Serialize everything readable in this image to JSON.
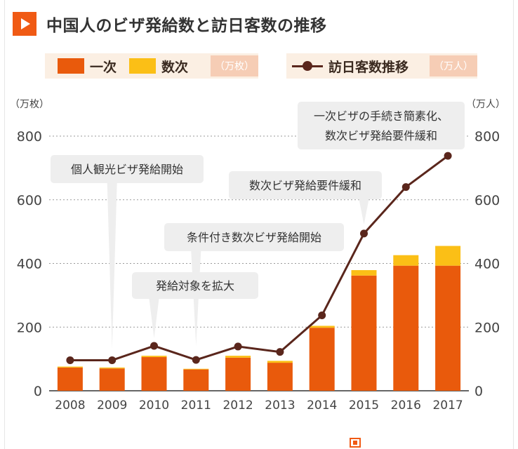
{
  "title": "中国人のビザ発給数と訪日客数の推移",
  "legend": {
    "first": "一次",
    "multi": "数次",
    "bar_unit": "（万枚）",
    "line": "訪日客数推移",
    "line_unit": "（万人）"
  },
  "colors": {
    "accent": "#f05a14",
    "single": "#e95a0c",
    "multi": "#fbbf16",
    "line": "#5a261c",
    "callout": "#eeeeee",
    "legend_bg": "#fbefe3"
  },
  "chart_data": {
    "type": "bar",
    "title": "中国人のビザ発給数と訪日客数の推移",
    "xlabel": "",
    "ylabel": "（万枚）",
    "y2label": "（万人）",
    "ylim": [
      0,
      800
    ],
    "y2lim": [
      0,
      800
    ],
    "yticks": [
      "0",
      "200",
      "400",
      "600",
      "800"
    ],
    "y2ticks": [
      "0",
      "200",
      "400",
      "600",
      "800"
    ],
    "grid": true,
    "categories": [
      "2008",
      "2009",
      "2010",
      "2011",
      "2012",
      "2013",
      "2014",
      "2015",
      "2016",
      "2017"
    ],
    "series": [
      {
        "name": "一次",
        "kind": "bar",
        "values": [
          73,
          70,
          106,
          67,
          104,
          88,
          198,
          362,
          393,
          393
        ]
      },
      {
        "name": "数次",
        "kind": "bar",
        "values": [
          3,
          3,
          4,
          2,
          6,
          6,
          6,
          17,
          33,
          62
        ]
      },
      {
        "name": "訪日客数推移",
        "kind": "line",
        "axis": "right",
        "values": [
          96,
          96,
          141,
          97,
          139,
          122,
          237,
          494,
          640,
          738
        ]
      }
    ],
    "annotations": [
      {
        "lines": [
          "個人観光ビザ発給開始"
        ],
        "x": "2009"
      },
      {
        "lines": [
          "発給対象を拡大"
        ],
        "x": "2010"
      },
      {
        "lines": [
          "条件付き数次ビザ発給開始"
        ],
        "x": "2011"
      },
      {
        "lines": [
          "数次ビザ発給要件緩和"
        ],
        "x": "2015"
      },
      {
        "lines": [
          "一次ビザの手続き簡素化、",
          "数次ビザ発給要件緩和"
        ],
        "x": "2017"
      }
    ]
  }
}
